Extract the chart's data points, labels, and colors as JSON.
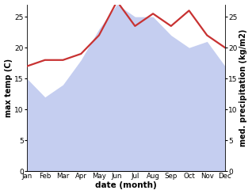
{
  "months": [
    "Jan",
    "Feb",
    "Mar",
    "Apr",
    "May",
    "Jun",
    "Jul",
    "Aug",
    "Sep",
    "Oct",
    "Nov",
    "Dec"
  ],
  "max_temp": [
    15,
    12,
    14,
    18,
    23,
    27,
    25,
    25,
    22,
    20,
    21,
    17
  ],
  "med_precip": [
    17,
    18,
    18,
    19,
    22,
    27.5,
    23.5,
    25.5,
    23.5,
    26,
    22,
    20
  ],
  "ylabel_left": "max temp (C)",
  "ylabel_right": "med. precipitation (kg/m2)",
  "xlabel": "date (month)",
  "ylim_left": [
    0,
    27
  ],
  "ylim_right": [
    0,
    27
  ],
  "yticks_left": [
    0,
    5,
    10,
    15,
    20,
    25
  ],
  "yticks_right": [
    0,
    5,
    10,
    15,
    20,
    25
  ],
  "bg_color": "#ffffff",
  "fill_color": "#c5cef0",
  "fill_alpha": 1.0,
  "precip_color": "#c83232",
  "precip_linewidth": 1.6
}
